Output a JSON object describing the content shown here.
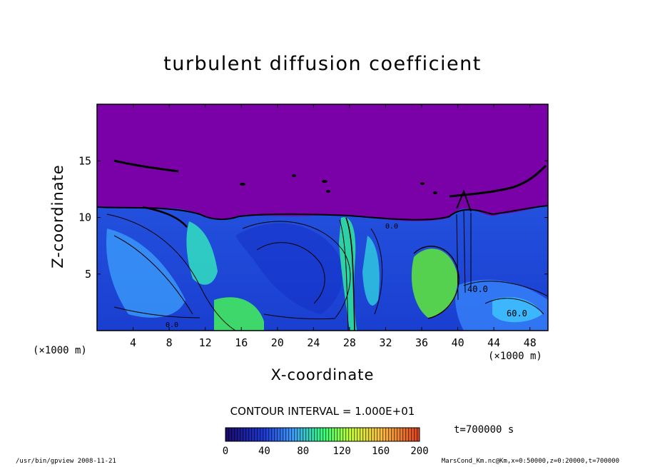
{
  "chart_data": {
    "type": "heatmap",
    "title": "turbulent diffusion coefficient",
    "xlabel": "X-coordinate",
    "ylabel": "Z-coordinate",
    "x_unit_label": "(×1000 m)",
    "x_ticks": [
      4,
      8,
      12,
      16,
      20,
      24,
      28,
      32,
      36,
      40,
      44,
      48
    ],
    "y_ticks": [
      5,
      10,
      15
    ],
    "xlim": [
      0,
      50
    ],
    "ylim": [
      0,
      20
    ],
    "contour_interval_text": "CONTOUR INTERVAL = 1.000E+01",
    "contour_labels": [
      "40.0",
      "60.0",
      "0.0",
      "0.0"
    ],
    "colorbar": {
      "range": [
        0,
        200
      ],
      "ticks": [
        0,
        40,
        80,
        120,
        160,
        200
      ],
      "colors": [
        "#1a0a6e",
        "#1e3ad8",
        "#3fa0ff",
        "#30ff80",
        "#c8ff30",
        "#ffc040",
        "#e04020"
      ]
    },
    "background_color": "#7a00a8",
    "time_label": "t=700000 s"
  },
  "footer": {
    "left": "/usr/bin/gpview  2008-11-21",
    "right": "MarsCond_Km.nc@Km,x=0:50000,z=0:20000,t=700000"
  }
}
